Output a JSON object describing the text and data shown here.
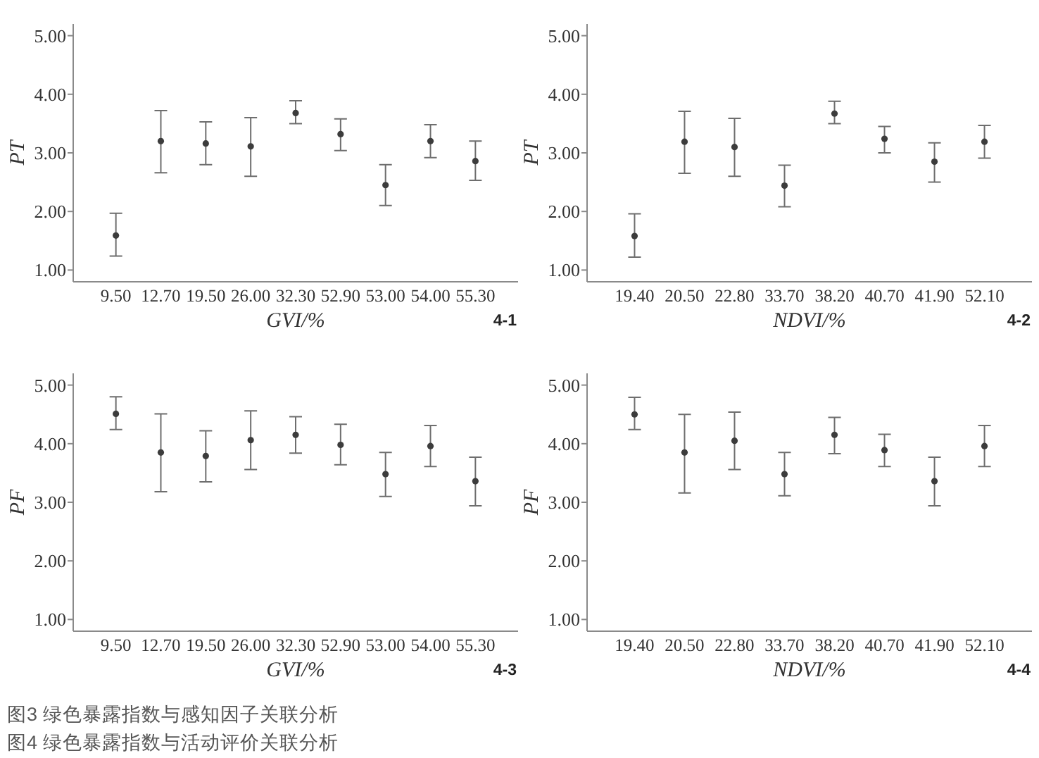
{
  "chart_data": [
    {
      "type": "scatter",
      "categories": [
        "9.50",
        "12.70",
        "19.50",
        "26.00",
        "32.30",
        "52.90",
        "53.00",
        "54.00",
        "55.30"
      ],
      "xlabel": "GVI/%",
      "ylabel": "PT",
      "ylim": [
        0.8,
        5.2
      ],
      "yticks": [
        {
          "value": 1,
          "label": "1.00"
        },
        {
          "value": 2,
          "label": "2.00"
        },
        {
          "value": 3,
          "label": "3.00"
        },
        {
          "value": 4,
          "label": "4.00"
        },
        {
          "value": 5,
          "label": "5.00"
        }
      ],
      "marker": "circle",
      "annotations": [
        "4-1"
      ],
      "series": [
        {
          "color": "#3c3c3c",
          "values": [
            1.59,
            3.2,
            3.16,
            3.11,
            3.68,
            3.32,
            2.45,
            3.2,
            2.86
          ],
          "errors": [
            [
              1.24,
              1.97
            ],
            [
              2.66,
              3.72
            ],
            [
              2.8,
              3.53
            ],
            [
              2.6,
              3.6
            ],
            [
              3.5,
              3.89
            ],
            [
              3.04,
              3.58
            ],
            [
              2.1,
              2.8
            ],
            [
              2.92,
              3.48
            ],
            [
              2.53,
              3.2
            ]
          ]
        }
      ]
    },
    {
      "type": "scatter",
      "categories": [
        "19.40",
        "20.50",
        "22.80",
        "33.70",
        "38.20",
        "40.70",
        "41.90",
        "52.10"
      ],
      "xlabel": "NDVI/%",
      "ylabel": "PT",
      "ylim": [
        0.8,
        5.2
      ],
      "yticks": [
        {
          "value": 1,
          "label": "1.00"
        },
        {
          "value": 2,
          "label": "2.00"
        },
        {
          "value": 3,
          "label": "3.00"
        },
        {
          "value": 4,
          "label": "4.00"
        },
        {
          "value": 5,
          "label": "5.00"
        }
      ],
      "marker": "circle",
      "annotations": [
        "4-2"
      ],
      "series": [
        {
          "color": "#3c3c3c",
          "values": [
            1.58,
            3.19,
            3.1,
            2.44,
            3.67,
            3.24,
            2.85,
            3.19
          ],
          "errors": [
            [
              1.22,
              1.96
            ],
            [
              2.65,
              3.71
            ],
            [
              2.6,
              3.59
            ],
            [
              2.08,
              2.79
            ],
            [
              3.5,
              3.88
            ],
            [
              3.0,
              3.45
            ],
            [
              2.5,
              3.17
            ],
            [
              2.91,
              3.47
            ]
          ]
        }
      ]
    },
    {
      "type": "scatter",
      "categories": [
        "9.50",
        "12.70",
        "19.50",
        "26.00",
        "32.30",
        "52.90",
        "53.00",
        "54.00",
        "55.30"
      ],
      "xlabel": "GVI/%",
      "ylabel": "PF",
      "ylim": [
        0.8,
        5.2
      ],
      "yticks": [
        {
          "value": 1,
          "label": "1.00"
        },
        {
          "value": 2,
          "label": "2.00"
        },
        {
          "value": 3,
          "label": "3.00"
        },
        {
          "value": 4,
          "label": "4.00"
        },
        {
          "value": 5,
          "label": "5.00"
        }
      ],
      "marker": "circle",
      "annotations": [
        "4-3"
      ],
      "series": [
        {
          "color": "#3c3c3c",
          "values": [
            4.51,
            3.85,
            3.79,
            4.06,
            4.15,
            3.98,
            3.48,
            3.96,
            3.36
          ],
          "errors": [
            [
              4.24,
              4.8
            ],
            [
              3.18,
              4.51
            ],
            [
              3.35,
              4.22
            ],
            [
              3.56,
              4.56
            ],
            [
              3.84,
              4.46
            ],
            [
              3.64,
              4.33
            ],
            [
              3.1,
              3.85
            ],
            [
              3.61,
              4.31
            ],
            [
              2.94,
              3.77
            ]
          ]
        }
      ]
    },
    {
      "type": "scatter",
      "categories": [
        "19.40",
        "20.50",
        "22.80",
        "33.70",
        "38.20",
        "40.70",
        "41.90",
        "52.10"
      ],
      "xlabel": "NDVI/%",
      "ylabel": "PF",
      "ylim": [
        0.8,
        5.2
      ],
      "yticks": [
        {
          "value": 1,
          "label": "1.00"
        },
        {
          "value": 2,
          "label": "2.00"
        },
        {
          "value": 3,
          "label": "3.00"
        },
        {
          "value": 4,
          "label": "4.00"
        },
        {
          "value": 5,
          "label": "5.00"
        }
      ],
      "marker": "circle",
      "annotations": [
        "4-4",
        "图3 绿色暴露指数与感知因子关联分析",
        "图4 绿色暴露指数与活动评价关联分析"
      ],
      "series": [
        {
          "color": "#3c3c3c",
          "values": [
            4.5,
            3.85,
            4.05,
            3.48,
            4.15,
            3.89,
            3.36,
            3.96
          ],
          "errors": [
            [
              4.24,
              4.79
            ],
            [
              3.16,
              4.5
            ],
            [
              3.56,
              4.54
            ],
            [
              3.11,
              3.85
            ],
            [
              3.83,
              4.45
            ],
            [
              3.61,
              4.16
            ],
            [
              2.94,
              3.77
            ],
            [
              3.61,
              4.31
            ]
          ]
        }
      ]
    }
  ]
}
